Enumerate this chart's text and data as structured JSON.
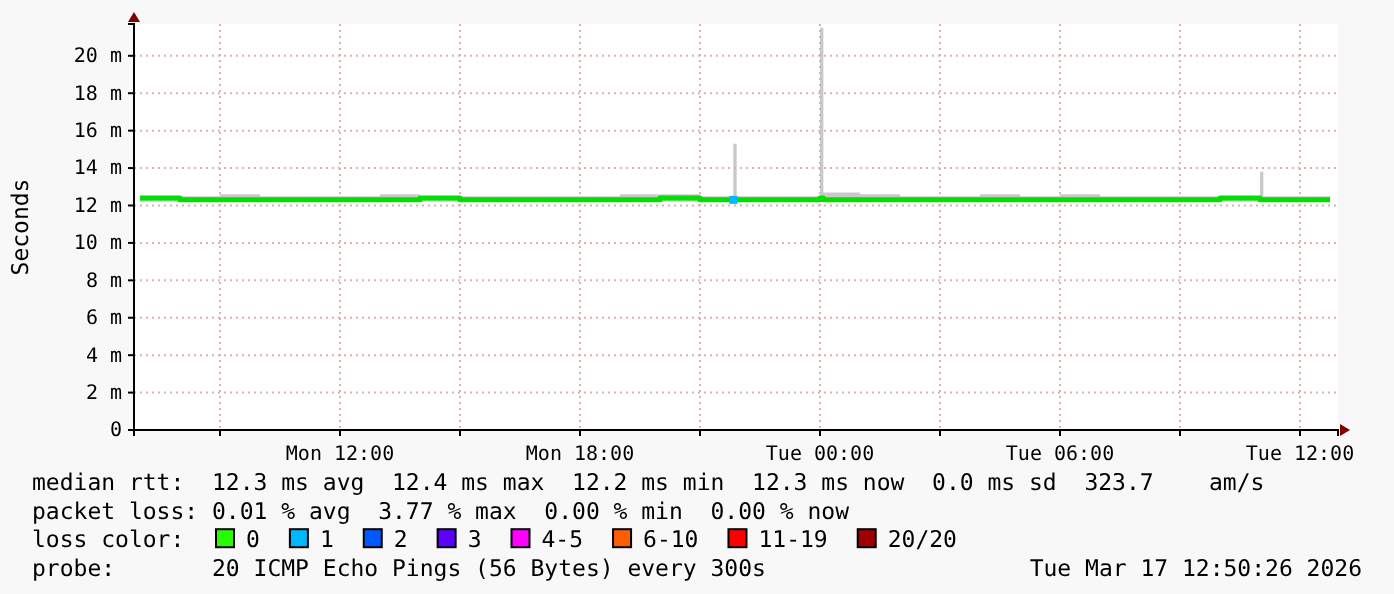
{
  "chart_data": {
    "type": "line",
    "ylabel": "Seconds",
    "xlim": [
      "2026-03-16T06:51",
      "2026-03-17T12:57"
    ],
    "xticks": [
      {
        "value": "2026-03-16T09:00",
        "label": null
      },
      {
        "value": "2026-03-16T12:00",
        "label": "Mon 12:00"
      },
      {
        "value": "2026-03-16T15:00",
        "label": null
      },
      {
        "value": "2026-03-16T18:00",
        "label": "Mon 18:00"
      },
      {
        "value": "2026-03-16T21:00",
        "label": null
      },
      {
        "value": "2026-03-17T00:00",
        "label": "Tue 00:00"
      },
      {
        "value": "2026-03-17T03:00",
        "label": null
      },
      {
        "value": "2026-03-17T06:00",
        "label": "Tue 06:00"
      },
      {
        "value": "2026-03-17T09:00",
        "label": null
      },
      {
        "value": "2026-03-17T12:00",
        "label": "Tue 12:00"
      }
    ],
    "ylim": [
      0,
      21.7
    ],
    "yticks": [
      0,
      {
        "value": 2,
        "label": "2 m"
      },
      {
        "value": 4,
        "label": "4 m"
      },
      {
        "value": 6,
        "label": "6 m"
      },
      {
        "value": 8,
        "label": "8 m"
      },
      {
        "value": 10,
        "label": "10 m"
      },
      {
        "value": 12,
        "label": "12 m"
      },
      {
        "value": 14,
        "label": "14 m"
      },
      {
        "value": 16,
        "label": "16 m"
      },
      {
        "value": 18,
        "label": "18 m"
      },
      {
        "value": 20,
        "label": "20 m"
      }
    ],
    "grid": true,
    "line_style": "solid",
    "series": [
      {
        "color": "#00e000",
        "x": [
          "2026-03-16T07:00",
          "2026-03-16T08:00",
          "2026-03-16T09:00",
          "2026-03-16T10:00",
          "2026-03-16T11:00",
          "2026-03-16T12:00",
          "2026-03-16T13:00",
          "2026-03-16T14:00",
          "2026-03-16T15:00",
          "2026-03-16T16:00",
          "2026-03-16T17:00",
          "2026-03-16T18:00",
          "2026-03-16T19:00",
          "2026-03-16T20:00",
          "2026-03-16T21:00",
          "2026-03-16T21:50",
          "2026-03-16T21:55",
          "2026-03-16T23:00",
          "2026-03-17T00:00",
          "2026-03-17T00:05",
          "2026-03-17T01:00",
          "2026-03-17T02:00",
          "2026-03-17T03:00",
          "2026-03-17T04:00",
          "2026-03-17T05:00",
          "2026-03-17T06:00",
          "2026-03-17T07:00",
          "2026-03-17T08:00",
          "2026-03-17T09:00",
          "2026-03-17T10:00",
          "2026-03-17T11:00",
          "2026-03-17T11:05",
          "2026-03-17T12:00",
          "2026-03-17T12:45"
        ],
        "values": [
          12.4,
          12.3,
          12.3,
          12.3,
          12.3,
          12.3,
          12.3,
          12.4,
          12.3,
          12.3,
          12.3,
          12.3,
          12.3,
          12.4,
          12.3,
          12.3,
          12.3,
          12.3,
          12.4,
          12.3,
          12.3,
          12.3,
          12.3,
          12.3,
          12.3,
          12.3,
          12.3,
          12.3,
          12.3,
          12.4,
          12.3,
          12.3,
          12.3,
          12.3
        ],
        "lower": [
          12.2,
          12.2,
          12.2,
          12.2,
          12.2,
          12.2,
          12.2,
          12.2,
          12.2,
          12.2,
          12.2,
          12.2,
          12.2,
          12.2,
          12.2,
          12.2,
          12.2,
          12.2,
          12.2,
          12.2,
          12.2,
          12.2,
          12.2,
          12.2,
          12.2,
          12.2,
          12.2,
          12.2,
          12.2,
          12.2,
          12.2,
          12.2,
          12.2,
          12.2
        ],
        "upper": [
          12.5,
          12.5,
          12.6,
          12.5,
          12.5,
          12.5,
          12.6,
          12.5,
          12.5,
          12.5,
          12.5,
          12.5,
          12.6,
          12.6,
          12.5,
          15.3,
          12.5,
          12.5,
          21.5,
          12.7,
          12.6,
          12.5,
          12.5,
          12.6,
          12.5,
          12.6,
          12.5,
          12.5,
          12.5,
          12.5,
          13.8,
          12.5,
          12.5,
          12.5
        ]
      },
      {
        "type": "scatter",
        "color": "#00b8ff",
        "marker": "square",
        "x": [
          "2026-03-16T21:50"
        ],
        "values": [
          12.3
        ]
      }
    ],
    "annotations": [
      "median rtt:  12.3 ms avg  12.4 ms max  12.2 ms min  12.3 ms now  0.0 ms sd  323.7    am/s",
      "packet loss: 0.01 % avg  3.77 % max  0.00 % min  0.00 % now",
      "loss color:",
      "0",
      "1",
      "2",
      "3",
      "4-5",
      "6-10",
      "11-19",
      "20/20",
      "probe:       20 ICMP Echo Pings (56 Bytes) every 300s",
      "Tue Mar 17 12:50:26 2026"
    ]
  }
}
